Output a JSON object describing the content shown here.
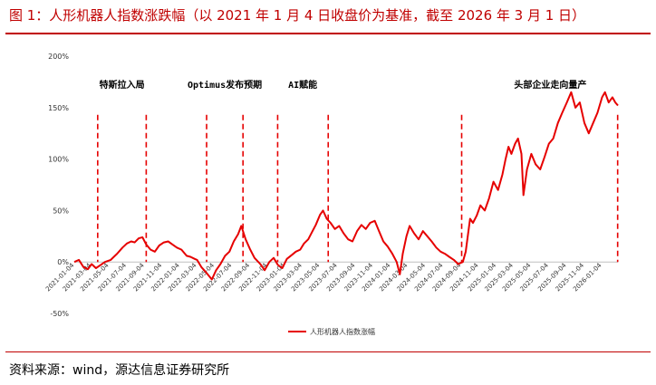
{
  "title": "图 1：人形机器人指数涨跌幅（以 2021 年 1 月 4 日收盘价为基准，截至 2026 年 3 月 1 日）",
  "source": "资料来源：wind，源达信息证券研究所",
  "colors": {
    "accent": "#c00000",
    "line": "#e60000"
  },
  "chart_data": {
    "type": "line",
    "title": "",
    "xlabel": "",
    "ylabel": "",
    "ylim": [
      -0.5,
      2.0
    ],
    "yticks": [
      -0.5,
      0,
      0.5,
      1.0,
      1.5,
      2.0
    ],
    "ytick_labels": [
      "-50%",
      "0%",
      "50%",
      "100%",
      "150%",
      "200%"
    ],
    "xlim": [
      "2021-01-04",
      "2026-03-01"
    ],
    "x_tick_labels": [
      "2021-01-04",
      "2021-03-04",
      "2021-05-04",
      "2021-07-04",
      "2021-09-04",
      "2021-11-04",
      "2022-01-04",
      "2022-03-04",
      "2022-05-04",
      "2022-07-04",
      "2022-09-04",
      "2022-11-04",
      "2023-01-04",
      "2023-03-04",
      "2023-05-04",
      "2023-07-04",
      "2023-09-04",
      "2023-11-04",
      "2024-01-04",
      "2024-03-04",
      "2024-05-04",
      "2024-07-04",
      "2024-09-04",
      "2024-11-04",
      "2025-01-04",
      "2025-03-04",
      "2025-05-04",
      "2025-07-04",
      "2025-09-04",
      "2025-11-04",
      "2026-01-04"
    ],
    "grid": false,
    "legend": "bottom-center",
    "series": [
      {
        "name": "人形机器人指数涨幅",
        "points": [
          [
            "2021-01-04",
            0.0
          ],
          [
            "2021-01-20",
            0.02
          ],
          [
            "2021-02-05",
            -0.05
          ],
          [
            "2021-02-20",
            -0.07
          ],
          [
            "2021-03-05",
            -0.02
          ],
          [
            "2021-03-20",
            -0.06
          ],
          [
            "2021-04-05",
            -0.03
          ],
          [
            "2021-04-20",
            0.0
          ],
          [
            "2021-05-10",
            0.02
          ],
          [
            "2021-06-01",
            0.08
          ],
          [
            "2021-06-20",
            0.14
          ],
          [
            "2021-07-05",
            0.18
          ],
          [
            "2021-07-20",
            0.2
          ],
          [
            "2021-08-01",
            0.19
          ],
          [
            "2021-08-15",
            0.23
          ],
          [
            "2021-08-28",
            0.24
          ],
          [
            "2021-09-10",
            0.17
          ],
          [
            "2021-09-25",
            0.12
          ],
          [
            "2021-10-10",
            0.1
          ],
          [
            "2021-10-25",
            0.16
          ],
          [
            "2021-11-10",
            0.19
          ],
          [
            "2021-11-25",
            0.2
          ],
          [
            "2021-12-10",
            0.17
          ],
          [
            "2021-12-25",
            0.14
          ],
          [
            "2022-01-10",
            0.12
          ],
          [
            "2022-01-28",
            0.06
          ],
          [
            "2022-02-10",
            0.05
          ],
          [
            "2022-02-25",
            0.03
          ],
          [
            "2022-03-05",
            0.02
          ],
          [
            "2022-03-20",
            -0.05
          ],
          [
            "2022-04-05",
            -0.1
          ],
          [
            "2022-04-25",
            -0.17
          ],
          [
            "2022-05-10",
            -0.08
          ],
          [
            "2022-05-25",
            -0.02
          ],
          [
            "2022-06-10",
            0.06
          ],
          [
            "2022-06-25",
            0.1
          ],
          [
            "2022-07-10",
            0.2
          ],
          [
            "2022-07-25",
            0.27
          ],
          [
            "2022-08-05",
            0.35
          ],
          [
            "2022-08-20",
            0.22
          ],
          [
            "2022-09-05",
            0.12
          ],
          [
            "2022-09-20",
            0.04
          ],
          [
            "2022-10-10",
            -0.02
          ],
          [
            "2022-10-25",
            -0.08
          ],
          [
            "2022-11-10",
            0.0
          ],
          [
            "2022-11-25",
            0.04
          ],
          [
            "2022-12-10",
            -0.03
          ],
          [
            "2022-12-25",
            -0.06
          ],
          [
            "2023-01-10",
            0.03
          ],
          [
            "2023-01-28",
            0.07
          ],
          [
            "2023-02-10",
            0.1
          ],
          [
            "2023-02-25",
            0.12
          ],
          [
            "2023-03-10",
            0.18
          ],
          [
            "2023-03-25",
            0.22
          ],
          [
            "2023-04-05",
            0.28
          ],
          [
            "2023-04-20",
            0.36
          ],
          [
            "2023-05-05",
            0.46
          ],
          [
            "2023-05-15",
            0.5
          ],
          [
            "2023-05-28",
            0.42
          ],
          [
            "2023-06-10",
            0.38
          ],
          [
            "2023-06-25",
            0.32
          ],
          [
            "2023-07-10",
            0.35
          ],
          [
            "2023-07-25",
            0.28
          ],
          [
            "2023-08-10",
            0.22
          ],
          [
            "2023-08-25",
            0.2
          ],
          [
            "2023-09-10",
            0.3
          ],
          [
            "2023-09-25",
            0.36
          ],
          [
            "2023-10-10",
            0.32
          ],
          [
            "2023-10-25",
            0.38
          ],
          [
            "2023-11-10",
            0.4
          ],
          [
            "2023-11-25",
            0.3
          ],
          [
            "2023-12-10",
            0.2
          ],
          [
            "2023-12-25",
            0.15
          ],
          [
            "2024-01-10",
            0.08
          ],
          [
            "2024-01-25",
            0.0
          ],
          [
            "2024-02-05",
            -0.12
          ],
          [
            "2024-02-15",
            0.08
          ],
          [
            "2024-02-28",
            0.25
          ],
          [
            "2024-03-10",
            0.35
          ],
          [
            "2024-03-25",
            0.28
          ],
          [
            "2024-04-10",
            0.22
          ],
          [
            "2024-04-25",
            0.3
          ],
          [
            "2024-05-10",
            0.25
          ],
          [
            "2024-05-25",
            0.2
          ],
          [
            "2024-06-10",
            0.14
          ],
          [
            "2024-06-25",
            0.1
          ],
          [
            "2024-07-10",
            0.08
          ],
          [
            "2024-07-25",
            0.05
          ],
          [
            "2024-08-10",
            0.02
          ],
          [
            "2024-08-25",
            -0.02
          ],
          [
            "2024-09-10",
            0.0
          ],
          [
            "2024-09-20",
            0.1
          ],
          [
            "2024-10-05",
            0.42
          ],
          [
            "2024-10-15",
            0.38
          ],
          [
            "2024-10-28",
            0.45
          ],
          [
            "2024-11-10",
            0.55
          ],
          [
            "2024-11-25",
            0.5
          ],
          [
            "2024-12-10",
            0.62
          ],
          [
            "2024-12-25",
            0.78
          ],
          [
            "2025-01-10",
            0.7
          ],
          [
            "2025-01-25",
            0.85
          ],
          [
            "2025-02-05",
            1.0
          ],
          [
            "2025-02-15",
            1.12
          ],
          [
            "2025-02-25",
            1.05
          ],
          [
            "2025-03-10",
            1.15
          ],
          [
            "2025-03-20",
            1.2
          ],
          [
            "2025-04-01",
            1.05
          ],
          [
            "2025-04-08",
            0.65
          ],
          [
            "2025-04-20",
            0.9
          ],
          [
            "2025-05-05",
            1.05
          ],
          [
            "2025-05-20",
            0.95
          ],
          [
            "2025-06-05",
            0.9
          ],
          [
            "2025-06-20",
            1.02
          ],
          [
            "2025-07-05",
            1.15
          ],
          [
            "2025-07-20",
            1.2
          ],
          [
            "2025-08-05",
            1.35
          ],
          [
            "2025-08-20",
            1.45
          ],
          [
            "2025-09-05",
            1.55
          ],
          [
            "2025-09-20",
            1.65
          ],
          [
            "2025-10-05",
            1.5
          ],
          [
            "2025-10-20",
            1.55
          ],
          [
            "2025-11-05",
            1.35
          ],
          [
            "2025-11-20",
            1.25
          ],
          [
            "2025-12-05",
            1.35
          ],
          [
            "2025-12-20",
            1.45
          ],
          [
            "2026-01-05",
            1.6
          ],
          [
            "2026-01-15",
            1.65
          ],
          [
            "2026-01-28",
            1.55
          ],
          [
            "2026-02-10",
            1.6
          ],
          [
            "2026-02-20",
            1.55
          ],
          [
            "2026-03-01",
            1.52
          ]
        ]
      }
    ],
    "event_lines": [
      {
        "x": "2021-03-26"
      },
      {
        "x": "2021-09-10"
      },
      {
        "x": "2022-04-07"
      },
      {
        "x": "2022-08-11"
      },
      {
        "x": "2022-12-09"
      },
      {
        "x": "2023-06-02"
      },
      {
        "x": "2024-09-06"
      },
      {
        "x": "2026-02-28"
      }
    ],
    "annotations": [
      {
        "text": "特斯拉入局",
        "x": "2021-06-18"
      },
      {
        "text": "Optimus发布预期",
        "x": "2022-06-09"
      },
      {
        "text": "AI赋能",
        "x": "2023-03-06"
      },
      {
        "text": "头部企业走向量产",
        "x": "2025-07-10"
      }
    ]
  }
}
